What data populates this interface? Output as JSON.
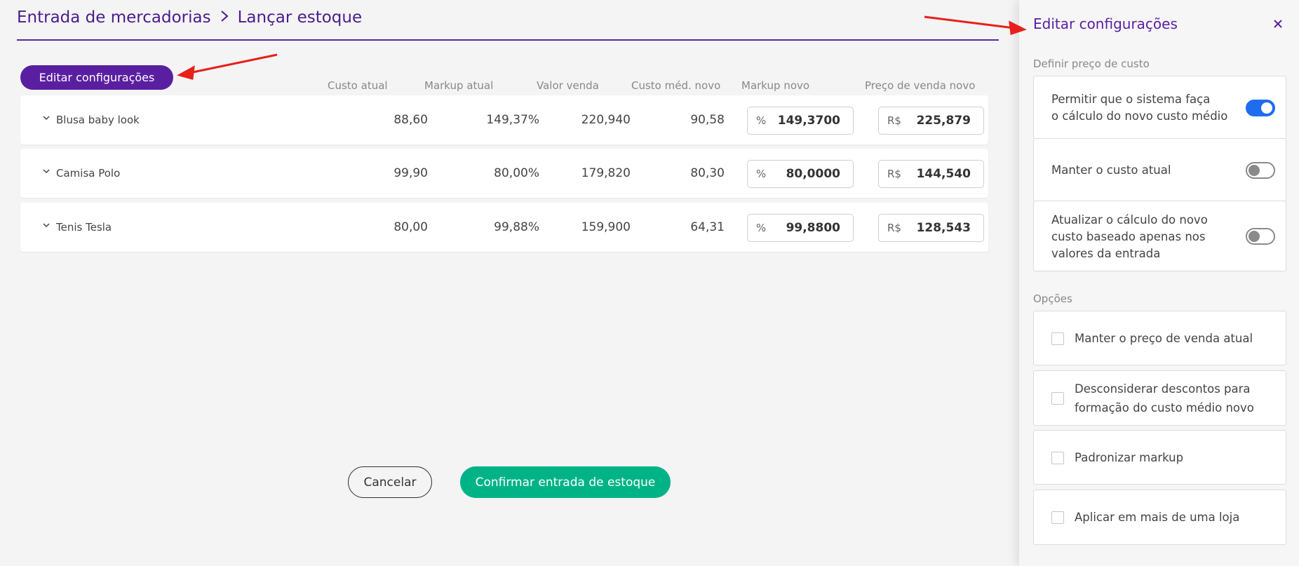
{
  "breadcrumb": {
    "root": "Entrada de mercadorias",
    "current": "Lançar estoque"
  },
  "toolbar": {
    "edit_label": "Editar configurações"
  },
  "table": {
    "columns": [
      "Custo atual",
      "Markup atual",
      "Valor venda",
      "Custo méd. novo",
      "Markup novo",
      "Preço de venda novo"
    ],
    "rows": [
      {
        "name": "Blusa baby look",
        "custo_atual": "88,60",
        "markup_atual": "149,37%",
        "valor_venda": "220,940",
        "custo_medio_novo": "90,58",
        "markup_unit": "%",
        "markup_novo": "149,3700",
        "preco_unit": "R$",
        "preco_venda_novo": "225,879"
      },
      {
        "name": "Camisa Polo",
        "custo_atual": "99,90",
        "markup_atual": "80,00%",
        "valor_venda": "179,820",
        "custo_medio_novo": "80,30",
        "markup_unit": "%",
        "markup_novo": "80,0000",
        "preco_unit": "R$",
        "preco_venda_novo": "144,540"
      },
      {
        "name": "Tenis Tesla",
        "custo_atual": "80,00",
        "markup_atual": "99,88%",
        "valor_venda": "159,900",
        "custo_medio_novo": "64,31",
        "markup_unit": "%",
        "markup_novo": "99,8800",
        "preco_unit": "R$",
        "preco_venda_novo": "128,543"
      }
    ]
  },
  "actions": {
    "cancel_label": "Cancelar",
    "confirm_label": "Confirmar entrada de estoque"
  },
  "panel": {
    "title": "Editar configurações",
    "cost_section_label": "Definir preço de custo",
    "cost_options": [
      {
        "line1": "Permitir que o sistema faça",
        "line2": "o cálculo do novo custo médio",
        "enabled": true
      },
      {
        "line1": "Manter o custo atual",
        "enabled": false
      },
      {
        "line1": "Atualizar o cálculo do novo",
        "line2": "custo baseado apenas nos",
        "line3": "valores da entrada",
        "enabled": false
      }
    ],
    "options_section_label": "Opções",
    "options": [
      {
        "line1": "Manter o preço de venda atual",
        "checked": false
      },
      {
        "line1": "Desconsiderar descontos para",
        "line2": "formação do custo médio novo",
        "checked": false
      },
      {
        "line1": "Padronizar markup",
        "checked": false
      },
      {
        "line1": "Aplicar em mais de uma loja",
        "checked": false
      }
    ]
  },
  "colors": {
    "brand_purple": "#5a1fa0",
    "confirm_green": "#00b386",
    "toggle_blue": "#1f6cf0",
    "annotation_red": "#e8201a"
  },
  "icons": [
    "chevron-right-icon",
    "chevron-down-icon",
    "close-icon",
    "annotation-arrow"
  ]
}
